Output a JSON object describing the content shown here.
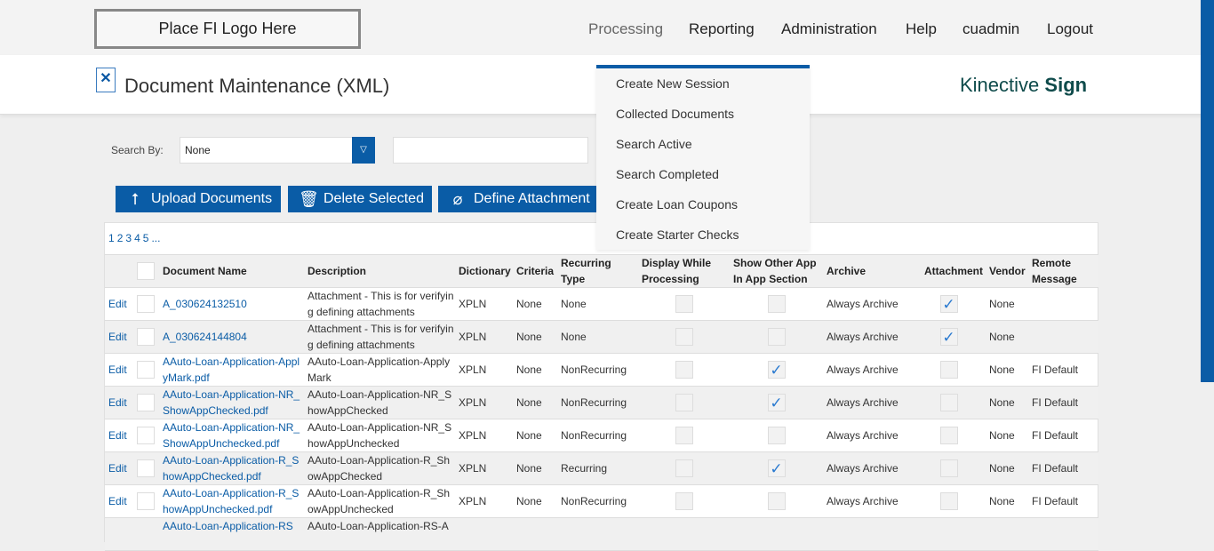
{
  "logo_text": "Place FI Logo Here",
  "nav": [
    "Processing",
    "Reporting",
    "Administration",
    "Help",
    "cuadmin",
    "Logout"
  ],
  "page_title": "Document Maintenance (XML)",
  "brand": {
    "light": "Kinective",
    "bold": "Sign"
  },
  "dropdown": [
    "Create New Session",
    "Collected Documents",
    "Search Active",
    "Search Completed",
    "Create Loan Coupons",
    "Create Starter Checks"
  ],
  "search": {
    "label": "Search By:",
    "selected": "None",
    "value": ""
  },
  "buttons": {
    "upload": "Upload Documents",
    "delete": "Delete Selected",
    "define": "Define Attachment"
  },
  "pager": [
    "1",
    "2",
    "3",
    "4",
    "5",
    "..."
  ],
  "columns": [
    "",
    "",
    "Document Name",
    "Description",
    "Dictionary",
    "Criteria",
    "Recurring Type",
    "Display While Processing",
    "Show Other App In App Section",
    "Archive",
    "Attachment",
    "Vendor",
    "Remote Message"
  ],
  "rows": [
    {
      "edit": "Edit",
      "name": "A_030624132510",
      "desc": "Attachment - This is for verifying defining attachments",
      "dict": "XPLN",
      "criteria": "None",
      "recurring": "None",
      "display": false,
      "showother": false,
      "archive": "Always Archive",
      "attachment": true,
      "vendor": "None",
      "remote": ""
    },
    {
      "edit": "Edit",
      "name": "A_030624144804",
      "desc": "Attachment - This is for verifying defining attachments",
      "dict": "XPLN",
      "criteria": "None",
      "recurring": "None",
      "display": false,
      "showother": false,
      "archive": "Always Archive",
      "attachment": true,
      "vendor": "None",
      "remote": ""
    },
    {
      "edit": "Edit",
      "name": "AAuto-Loan-Application-ApplyMark.pdf",
      "desc": "AAuto-Loan-Application-ApplyMark",
      "dict": "XPLN",
      "criteria": "None",
      "recurring": "NonRecurring",
      "display": false,
      "showother": true,
      "archive": "Always Archive",
      "attachment": false,
      "vendor": "None",
      "remote": "FI Default"
    },
    {
      "edit": "Edit",
      "name": "AAuto-Loan-Application-NR_ShowAppChecked.pdf",
      "desc": "AAuto-Loan-Application-NR_ShowAppChecked",
      "dict": "XPLN",
      "criteria": "None",
      "recurring": "NonRecurring",
      "display": false,
      "showother": true,
      "archive": "Always Archive",
      "attachment": false,
      "vendor": "None",
      "remote": "FI Default"
    },
    {
      "edit": "Edit",
      "name": "AAuto-Loan-Application-NR_ShowAppUnchecked.pdf",
      "desc": "AAuto-Loan-Application-NR_ShowAppUnchecked",
      "dict": "XPLN",
      "criteria": "None",
      "recurring": "NonRecurring",
      "display": false,
      "showother": false,
      "archive": "Always Archive",
      "attachment": false,
      "vendor": "None",
      "remote": "FI Default"
    },
    {
      "edit": "Edit",
      "name": "AAuto-Loan-Application-R_ShowAppChecked.pdf",
      "desc": "AAuto-Loan-Application-R_ShowAppChecked",
      "dict": "XPLN",
      "criteria": "None",
      "recurring": "Recurring",
      "display": false,
      "showother": true,
      "archive": "Always Archive",
      "attachment": false,
      "vendor": "None",
      "remote": "FI Default"
    },
    {
      "edit": "Edit",
      "name": "AAuto-Loan-Application-R_ShowAppUnchecked.pdf",
      "desc": "AAuto-Loan-Application-R_ShowAppUnchecked",
      "dict": "XPLN",
      "criteria": "None",
      "recurring": "NonRecurring",
      "display": false,
      "showother": false,
      "archive": "Always Archive",
      "attachment": false,
      "vendor": "None",
      "remote": "FI Default"
    },
    {
      "edit": "",
      "name": "AAuto-Loan-Application-RS",
      "desc": "AAuto-Loan-Application-RS-A",
      "dict": "",
      "criteria": "",
      "recurring": "",
      "display": false,
      "showother": false,
      "archive": "",
      "attachment": false,
      "vendor": "",
      "remote": ""
    }
  ],
  "colors": {
    "accent": "#0a5ca6",
    "link": "#0a5ca6",
    "brand": "#0f4b4b"
  }
}
